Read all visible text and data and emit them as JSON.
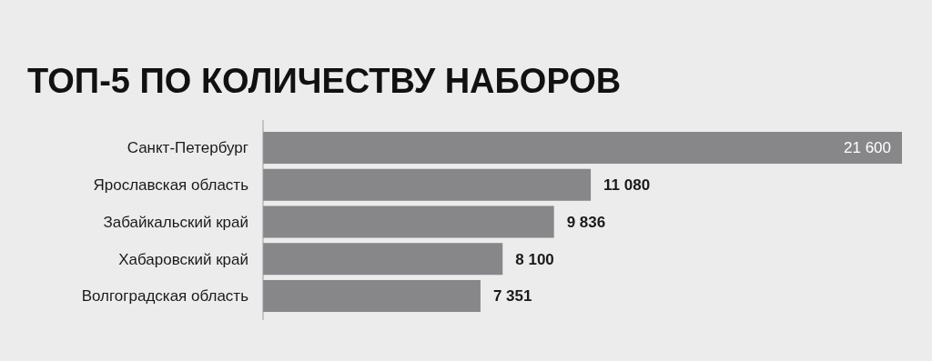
{
  "chart_data": {
    "type": "bar",
    "orientation": "horizontal",
    "title": "ТОП-5 ПО КОЛИЧЕСТВУ НАБОРОВ",
    "categories": [
      "Санкт-Петербург",
      "Ярославская область",
      "Забайкальский край",
      "Хабаровский край",
      "Волгоградская область"
    ],
    "values": [
      21600,
      11080,
      9836,
      8100,
      7351
    ],
    "value_labels": [
      "21 600",
      "11 080",
      "9 836",
      "8 100",
      "7 351"
    ],
    "color": "#87878a"
  }
}
